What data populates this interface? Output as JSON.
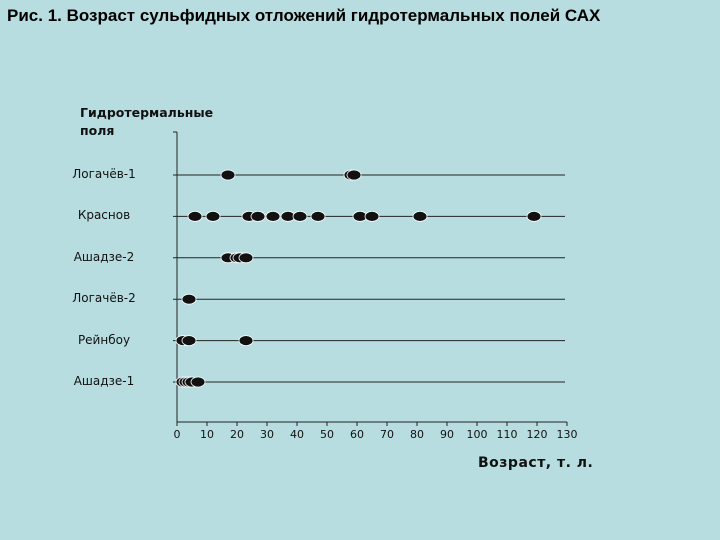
{
  "title": "Рис. 1. Возраст сульфидных отложений гидротермальных полей САХ",
  "chart_data": {
    "type": "scatter",
    "ylabel": "Гидротермальные поля",
    "xlabel": "Возраст, т. л.",
    "xlim": [
      0,
      130
    ],
    "xticks": [
      0,
      10,
      20,
      30,
      40,
      50,
      60,
      70,
      80,
      90,
      100,
      110,
      120,
      130
    ],
    "categories": [
      "Логачёв-1",
      "Краснов",
      "Ашадзе-2",
      "Логачёв-2",
      "Рейнбоу",
      "Ашадзе-1"
    ],
    "grid": "horizontal",
    "points": [
      {
        "category": "Логачёв-1",
        "x": [
          17,
          58,
          59
        ]
      },
      {
        "category": "Краснов",
        "x": [
          6,
          12,
          24,
          27,
          32,
          37,
          41,
          47,
          61,
          65,
          81,
          119
        ]
      },
      {
        "category": "Ашадзе-2",
        "x": [
          17,
          20,
          21,
          23
        ]
      },
      {
        "category": "Логачёв-2",
        "x": [
          4
        ]
      },
      {
        "category": "Рейнбоу",
        "x": [
          2,
          4,
          23
        ]
      },
      {
        "category": "Ашадзе-1",
        "x": [
          2,
          3,
          4,
          5,
          7
        ]
      }
    ]
  }
}
